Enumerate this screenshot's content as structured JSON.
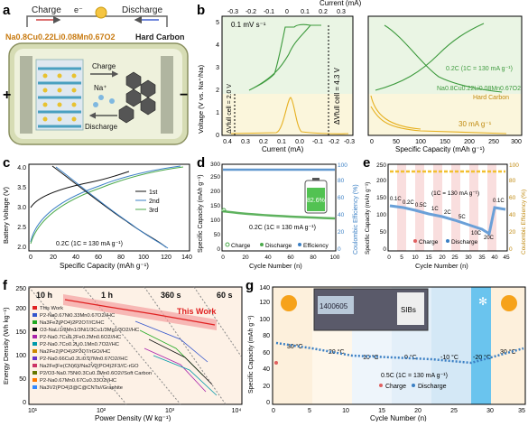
{
  "panels": {
    "a": {
      "letter": "a",
      "charge_label": "Charge",
      "electron_label": "e⁻",
      "discharge_label": "Discharge",
      "cathode_formula": "Na0.8Cu0.22Li0.08Mn0.67O2",
      "anode_label": "Hard Carbon",
      "inner_charge": "Charge",
      "inner_discharge": "Discharge",
      "ion_label": "Na⁺",
      "plus": "+",
      "minus": "−"
    },
    "b": {
      "letter": "b",
      "top_axis_label": "Current (mA)",
      "top_ticks": [
        "-0.3",
        "-0.2",
        "-0.1",
        "0",
        "0.1",
        "0.2",
        "0.3"
      ],
      "bottom_left_label": "Current (mA)",
      "bottom_left_ticks": [
        "0.4",
        "0.3",
        "0.2",
        "0.1",
        "0.0",
        "-0.1",
        "-0.2",
        "-0.3"
      ],
      "bottom_right_label": "Specific Capacity (mAh g⁻¹)",
      "bottom_right_ticks": [
        "0",
        "50",
        "100",
        "150",
        "200",
        "250",
        "300"
      ],
      "y_label": "Voltage (V vs. Na⁺/Na)",
      "y_ticks": [
        "0",
        "1",
        "2",
        "3",
        "4",
        "5"
      ],
      "scan_rate": "0.1 mV s⁻¹",
      "dv_full_cell": "ΔVfull cell = 4.3 V",
      "dv_half_cell": "ΔVfull cell = 2.0 V",
      "rate_text": "0.2C (1C = 130 mA g⁻¹)",
      "cathode_label": "Na0.8Cu0.22Li0.08Mn0.67O2",
      "anode_label": "Hard Carbon",
      "hc_rate": "30 mA g⁻¹",
      "colors": {
        "cathode": "#3d9a3d",
        "anode": "#e6b020",
        "band_green": "#eaf5e4",
        "band_yellow": "#fbf6dc"
      }
    },
    "c": {
      "letter": "c",
      "x_label": "Specific Capacity (mAh g⁻¹)",
      "y_label": "Battery Voltage (V)",
      "x_ticks": [
        "0",
        "20",
        "40",
        "60",
        "80",
        "100",
        "120",
        "140"
      ],
      "y_ticks": [
        "2.0",
        "2.5",
        "3.0",
        "3.5",
        "4.0"
      ],
      "legend": [
        "1st",
        "2nd",
        "3rd"
      ],
      "rate_text": "0.2C (1C = 130 mA g⁻¹)",
      "colors": {
        "c1": "#111111",
        "c2": "#3a7fc4",
        "c3": "#4caa4c"
      }
    },
    "d": {
      "letter": "d",
      "x_label": "Cycle Number (n)",
      "y_label": "Specific Capacity (mAh g⁻¹)",
      "y2_label": "Coulombic Efficiency (%)",
      "x_ticks": [
        "0",
        "20",
        "40",
        "60",
        "80",
        "100"
      ],
      "y_ticks": [
        "0",
        "50",
        "100",
        "150",
        "200",
        "250",
        "300"
      ],
      "y2_ticks": [
        "0",
        "20",
        "40",
        "60",
        "80",
        "100"
      ],
      "battery_text": "82.6%",
      "rate_text": "0.2C (1C = 130 mA g⁻¹)",
      "legend": [
        "Charge",
        "Discharge",
        "Efficiency"
      ]
    },
    "e": {
      "letter": "e",
      "x_label": "Cycle Number (n)",
      "y_label": "Specific Capacity (mAh g⁻¹)",
      "y2_label": "Coulombic Efficiency (%)",
      "x_ticks": [
        "0",
        "5",
        "10",
        "15",
        "20",
        "25",
        "30",
        "35",
        "40",
        "45"
      ],
      "y_ticks": [
        "0",
        "50",
        "100",
        "150",
        "200",
        "250"
      ],
      "y2_ticks": [
        "0",
        "20",
        "40",
        "60",
        "80",
        "100"
      ],
      "rate_labels": [
        "0.1C",
        "0.2C",
        "0.5C",
        "1C",
        "2C",
        "5C",
        "10C",
        "20C",
        "0.1C"
      ],
      "rate_text": "(1C = 130 mA g⁻¹)",
      "legend": [
        "Charge",
        "Discharge"
      ]
    },
    "f": {
      "letter": "f",
      "x_label": "Power Density (W kg⁻¹)",
      "y_label": "Energy Density (Wh kg⁻¹)",
      "x_ticks": [
        "10¹",
        "10²",
        "10³",
        "10⁴"
      ],
      "y_ticks": [
        "0",
        "50",
        "100",
        "150",
        "200",
        "250"
      ],
      "time_labels": [
        "10 h",
        "1 h",
        "360 s",
        "60 s"
      ],
      "this_work": "This Work",
      "legend": [
        "This Work",
        "P2-Na0.67Ni0.33Mn0.67O2//HC",
        "Na3Fe2(PO4)2P2O7//C/HC",
        "O3-NaLi1/3Mn1/3Ni1/3Cu1/3Mg1/3O2//HC",
        "P2-Na0.7Cu0.2Fe0.2Mn0.6O2//HC",
        "P2-Na0.7Co0.2Li0.1Mn0.7O2//HC",
        "Na2Fe2(PO4)2P2O7/rGO//HC",
        "P2-Na0.66Cu0.2Li0.07Mn0.67O2//HC",
        "Na2Fe[Fe(CN)6]//Na2V2(PO4)2F3//C-rGO",
        "P2/O3-Na0.75Ni0.3Cu0.1Mn0.6O2//Soft Carbon",
        "P2-Na0.67Mn0.67Cu0.33O2//HC",
        "Na3V2(PO4)3@C@CNTs//Graphite"
      ],
      "legend_colors": [
        "#e02020",
        "#3355cc",
        "#22aa22",
        "#111111",
        "#aa22aa",
        "#0099aa",
        "#cc8800",
        "#6633cc",
        "#cc3366",
        "#667700",
        "#ff7700",
        "#3388ff"
      ]
    },
    "g": {
      "letter": "g",
      "x_label": "Cycle Number (n)",
      "y_label": "Specific Capacity (mAh g⁻¹)",
      "x_ticks": [
        "0",
        "5",
        "10",
        "15",
        "20",
        "25",
        "30",
        "35"
      ],
      "y_ticks": [
        "0",
        "20",
        "40",
        "60",
        "80",
        "100",
        "120",
        "140"
      ],
      "temps": [
        "30 °C",
        "20 °C",
        "10 °C",
        "0 °C",
        "-10 °C",
        "-20 °C",
        "30 °C"
      ],
      "rate_text": "0.5C (1C = 130 mA g⁻¹)",
      "legend": [
        "Charge",
        "Discharge"
      ],
      "display_text": "1400605",
      "sibs_label": "SIBs"
    }
  }
}
